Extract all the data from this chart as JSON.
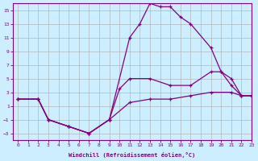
{
  "xlabel": "Windchill (Refroidissement éolien,°C)",
  "bg_color": "#cceeff",
  "line_color": "#800080",
  "grid_color": "#aaaaaa",
  "xlim": [
    -0.5,
    23
  ],
  "ylim": [
    -4,
    16
  ],
  "xticks": [
    0,
    1,
    2,
    3,
    4,
    5,
    6,
    7,
    8,
    9,
    10,
    11,
    12,
    13,
    14,
    15,
    16,
    17,
    18,
    19,
    20,
    21,
    22,
    23
  ],
  "yticks": [
    -3,
    -1,
    1,
    3,
    5,
    7,
    9,
    11,
    13,
    15
  ],
  "line1_x": [
    0,
    2,
    3,
    5,
    7,
    9,
    11,
    12,
    13,
    14,
    15,
    16,
    17,
    19,
    20,
    21,
    22,
    23
  ],
  "line1_y": [
    2,
    2,
    -1,
    -2,
    -3,
    -1,
    11,
    13,
    16,
    15.5,
    15.5,
    14,
    13,
    9.5,
    6,
    4,
    2.5,
    2.5
  ],
  "line2_x": [
    0,
    2,
    3,
    5,
    7,
    9,
    10,
    11,
    13,
    15,
    17,
    19,
    20,
    21,
    22,
    23
  ],
  "line2_y": [
    2,
    2,
    -1,
    -2,
    -3,
    -1,
    3.5,
    5,
    5,
    4,
    4,
    6,
    6,
    5,
    2.5,
    2.5
  ],
  "line3_x": [
    0,
    2,
    3,
    5,
    7,
    9,
    11,
    13,
    15,
    17,
    19,
    21,
    22,
    23
  ],
  "line3_y": [
    2,
    2,
    -1,
    -2,
    -3,
    -1,
    1.5,
    2,
    2,
    2.5,
    3,
    3,
    2.5,
    2.5
  ]
}
